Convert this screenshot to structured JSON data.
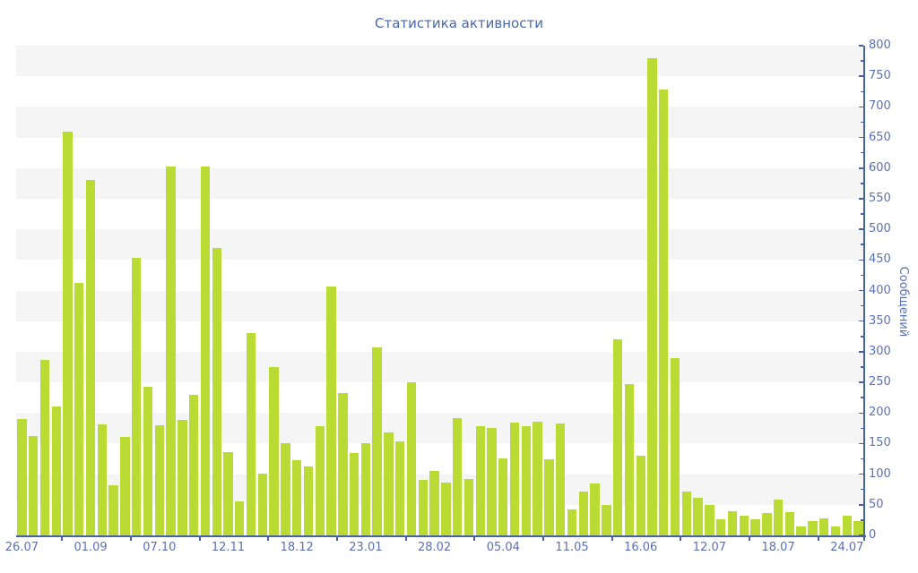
{
  "title": "Статистика активности",
  "colors": {
    "bar": "#b9db33",
    "axis_line": "#48619f",
    "tick_text": "#5a71b6",
    "title_text": "#4667b2",
    "stripe": "#f5f5f5",
    "background": "#ffffff"
  },
  "chart_data": {
    "type": "bar",
    "title": "Статистика активности",
    "xlabel": "",
    "ylabel": "Сообщений",
    "ylim": [
      0,
      800
    ],
    "y_major_step": 50,
    "y_minor_step": 25,
    "legend": "none",
    "grid": "alternating horizontal bands, y-axis on right, x-axis labels every 6th bar",
    "x_tick_labels": [
      "26.07",
      "01.09",
      "07.10",
      "12.11",
      "18.12",
      "23.01",
      "28.02",
      "05.04",
      "11.05",
      "16.06",
      "12.07",
      "18.07",
      "24.07"
    ],
    "label_every": 6,
    "label_start_index": 0,
    "values": [
      190,
      162,
      287,
      210,
      660,
      412,
      580,
      181,
      82,
      161,
      453,
      243,
      180,
      602,
      189,
      230,
      602,
      470,
      136,
      56,
      330,
      101,
      275,
      151,
      123,
      112,
      179,
      406,
      232,
      134,
      151,
      307,
      168,
      153,
      250,
      90,
      105,
      87,
      192,
      92,
      178,
      175,
      126,
      184,
      179,
      186,
      125,
      183,
      43,
      71,
      85,
      50,
      321,
      247,
      130,
      780,
      728,
      290,
      72,
      62,
      50,
      26,
      40,
      32,
      26,
      37,
      58,
      38,
      15,
      23,
      28,
      15,
      32,
      23
    ]
  }
}
